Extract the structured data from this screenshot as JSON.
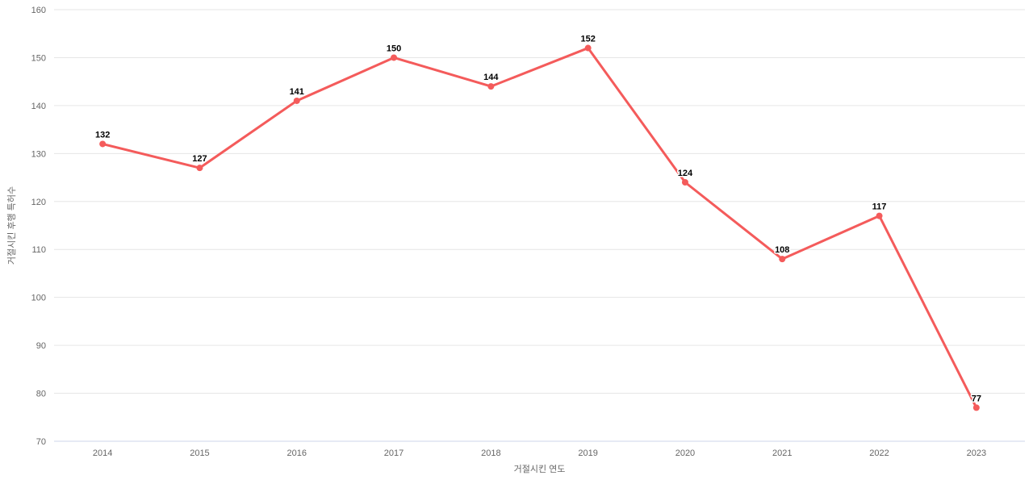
{
  "chart_data": {
    "type": "line",
    "title": "",
    "categories": [
      "2014",
      "2015",
      "2016",
      "2017",
      "2018",
      "2019",
      "2020",
      "2021",
      "2022",
      "2023"
    ],
    "values": [
      132,
      127,
      141,
      150,
      144,
      152,
      124,
      108,
      117,
      77
    ],
    "xlabel": "거절시킨 연도",
    "ylabel": "거절시킨 후행 특허수",
    "ylim": [
      70,
      160
    ],
    "ytick_step": 10,
    "yticks": [
      70,
      80,
      90,
      100,
      110,
      120,
      130,
      140,
      150,
      160
    ],
    "grid": "horizontal",
    "legend": "none",
    "data_labels_shown": true
  },
  "colors": {
    "series_line": "#f45b5b",
    "marker_fill": "#f45b5b",
    "gridline": "#e6e6e6",
    "axis_line": "#ccd6eb",
    "tick_label": "#666666",
    "axis_title": "#666666",
    "data_label": "#000000",
    "background": "#ffffff"
  }
}
